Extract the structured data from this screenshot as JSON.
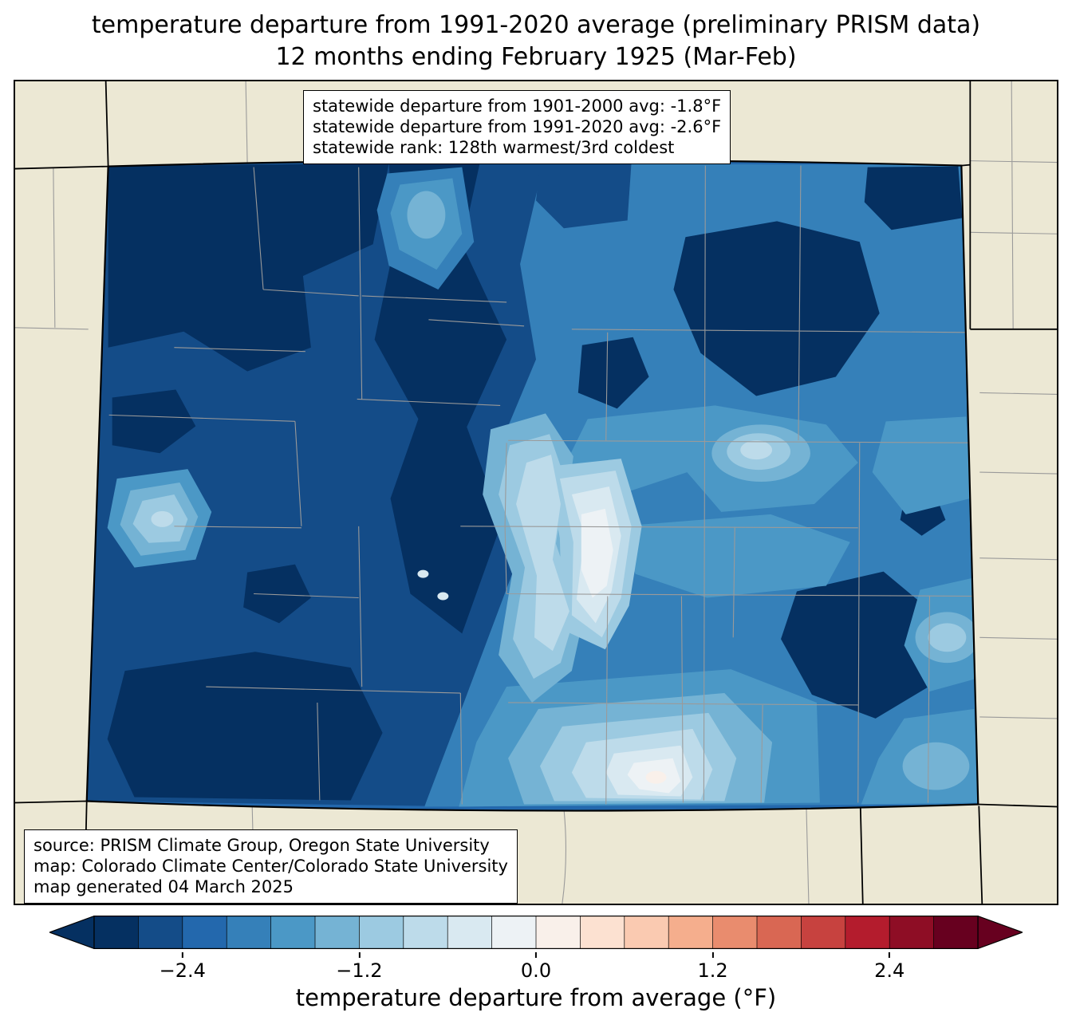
{
  "title": {
    "line1": "temperature departure from 1991-2020 average (preliminary PRISM data)",
    "line2": "12 months ending February 1925 (Mar-Feb)"
  },
  "stats_box": {
    "line1": "statewide departure from 1901-2000 avg: -1.8°F",
    "line2": "statewide departure from 1991-2020 avg: -2.6°F",
    "line3": "statewide rank: 128th warmest/3rd coldest"
  },
  "source_box": {
    "line1": "source: PRISM Climate Group, Oregon State University",
    "line2": "map: Colorado Climate Center/Colorado State University",
    "line3": "map generated 04 March 2025"
  },
  "colorbar": {
    "axis_label": "temperature departure from average (°F)",
    "range": [
      -3.0,
      3.0
    ],
    "tick_values": [
      -2.4,
      -1.2,
      0.0,
      1.2,
      2.4
    ],
    "tick_labels": [
      "−2.4",
      "−1.2",
      "0.0",
      "1.2",
      "2.4"
    ],
    "under_color": "#053061",
    "over_color": "#67001f",
    "segment_colors": [
      "#053061",
      "#144c88",
      "#2368ad",
      "#3580b9",
      "#4b98c6",
      "#75b3d4",
      "#9ccae1",
      "#bddbea",
      "#d9e9f1",
      "#edf2f5",
      "#f9f0ea",
      "#fce1d1",
      "#facab1",
      "#f5ae8d",
      "#e98c6e",
      "#d96753",
      "#c7423f",
      "#b41c2d",
      "#8e0d25",
      "#67001f"
    ]
  },
  "map": {
    "region": "Colorado",
    "land_color": "#ece8d4",
    "county_line_color": "#9a9a9a",
    "state_border_color": "#000000"
  },
  "chart_data": {
    "type": "heatmap",
    "title": "temperature departure from 1991-2020 average (preliminary PRISM data) — 12 months ending February 1925 (Mar-Feb)",
    "region": "Colorado",
    "colorbar_label": "temperature departure from average (°F)",
    "colorbar_ticks": [
      -2.4,
      -1.2,
      0.0,
      1.2,
      2.4
    ],
    "colorbar_range": [
      -3.0,
      3.0
    ],
    "statewide_departure_from_1901_2000_avg_F": -1.8,
    "statewide_departure_from_1991_2020_avg_F": -2.6,
    "statewide_rank": "128th warmest/3rd coldest"
  }
}
